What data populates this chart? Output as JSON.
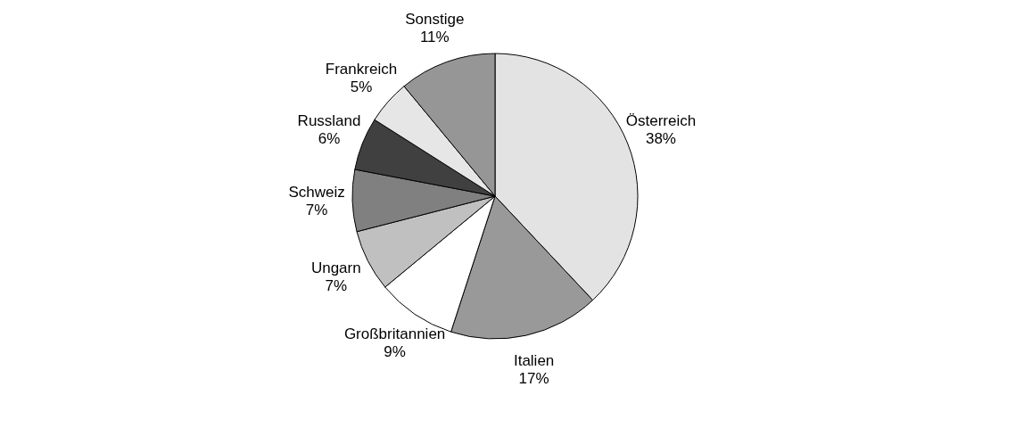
{
  "chart_data": {
    "type": "pie",
    "categories": [
      "Österreich",
      "Italien",
      "Großbritannien",
      "Ungarn",
      "Schweiz",
      "Russland",
      "Frankreich",
      "Sonstige"
    ],
    "values": [
      38,
      17,
      9,
      7,
      7,
      6,
      5,
      11
    ],
    "value_labels": [
      "38%",
      "17%",
      "9%",
      "7%",
      "7%",
      "6%",
      "5%",
      "11%"
    ],
    "colors": [
      "#e3e3e3",
      "#999999",
      "#ffffff",
      "#c0c0c0",
      "#808080",
      "#404040",
      "#e6e6e6",
      "#969696"
    ],
    "legend": false
  }
}
